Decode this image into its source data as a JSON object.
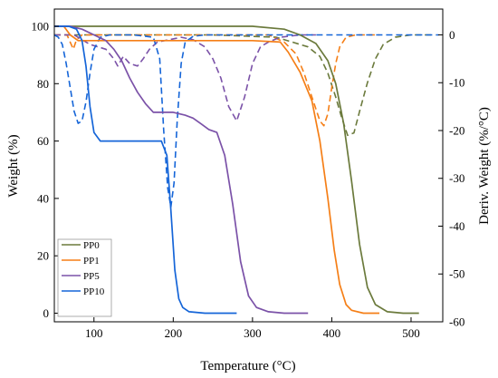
{
  "chart_data": {
    "type": "line",
    "title": "",
    "xlabel": "Temperature (°C)",
    "ylabel": "Weight (%)",
    "y2label": "Deriv. Weight (%/°C)",
    "xlim": [
      50,
      540
    ],
    "ylim": [
      -3,
      106
    ],
    "y2lim": [
      -60,
      5.4
    ],
    "xticks": [
      100,
      200,
      300,
      400,
      500
    ],
    "yticks": [
      0,
      20,
      40,
      60,
      80,
      100
    ],
    "y2ticks": [
      0,
      -10,
      -20,
      -30,
      -40,
      -50,
      -60
    ],
    "grid": false,
    "legend_position": "bottom-left",
    "legend": [
      {
        "name": "PP0",
        "color": "#6b7a3c"
      },
      {
        "name": "PP1",
        "color": "#f57f17"
      },
      {
        "name": "PP5",
        "color": "#7b52a8"
      },
      {
        "name": "PP10",
        "color": "#1565d8"
      }
    ],
    "series": [
      {
        "name": "PP0",
        "axis": "left",
        "style": "solid",
        "color": "#6b7a3c",
        "x": [
          50,
          100,
          200,
          300,
          340,
          360,
          380,
          395,
          405,
          415,
          425,
          435,
          445,
          455,
          470,
          490,
          510
        ],
        "y": [
          100,
          100,
          100,
          100,
          99,
          97,
          94,
          88,
          80,
          66,
          46,
          24,
          9,
          3,
          0.5,
          0,
          0
        ]
      },
      {
        "name": "PP1",
        "axis": "left",
        "style": "solid",
        "color": "#f57f17",
        "x": [
          50,
          62,
          70,
          80,
          100,
          200,
          300,
          335,
          345,
          360,
          375,
          385,
          395,
          403,
          410,
          418,
          425,
          440,
          460
        ],
        "y": [
          100,
          100,
          97,
          95,
          95,
          95,
          95,
          94.5,
          91,
          84,
          74,
          60,
          40,
          22,
          10,
          3,
          1,
          0,
          0
        ]
      },
      {
        "name": "PP5",
        "axis": "left",
        "style": "solid",
        "color": "#7b52a8",
        "x": [
          50,
          70,
          85,
          100,
          115,
          125,
          135,
          145,
          155,
          165,
          175,
          200,
          215,
          225,
          235,
          245,
          255,
          265,
          275,
          285,
          295,
          305,
          320,
          340,
          370
        ],
        "y": [
          100,
          100,
          99,
          97,
          95,
          92,
          88,
          82,
          77,
          73,
          70,
          70,
          69,
          68,
          66,
          64,
          63,
          55,
          38,
          18,
          6,
          2,
          0.5,
          0,
          0
        ]
      },
      {
        "name": "PP10",
        "axis": "left",
        "style": "solid",
        "color": "#1565d8",
        "x": [
          50,
          68,
          78,
          85,
          90,
          95,
          100,
          108,
          150,
          185,
          192,
          197,
          202,
          207,
          212,
          220,
          240,
          280
        ],
        "y": [
          100,
          100,
          99,
          95,
          86,
          72,
          63,
          60,
          60,
          60,
          55,
          36,
          15,
          5,
          2,
          0.5,
          0,
          0
        ]
      },
      {
        "name": "PP0 DTG",
        "axis": "right",
        "style": "dashed",
        "color": "#6b7a3c",
        "x": [
          50,
          250,
          330,
          350,
          370,
          385,
          395,
          405,
          412,
          420,
          428,
          435,
          445,
          455,
          465,
          480,
          500,
          530
        ],
        "y": [
          0,
          0,
          -0.5,
          -1.5,
          -2.5,
          -4.5,
          -8,
          -13,
          -17,
          -21,
          -20.5,
          -16,
          -10,
          -5,
          -2,
          -0.5,
          0,
          0
        ]
      },
      {
        "name": "PP1 DTG",
        "axis": "right",
        "style": "dashed",
        "color": "#f57f17",
        "x": [
          50,
          66,
          70,
          74,
          78,
          85,
          320,
          340,
          355,
          365,
          375,
          385,
          390,
          395,
          400,
          405,
          410,
          418,
          430,
          460
        ],
        "y": [
          0,
          0,
          -1.5,
          -3,
          -1,
          0,
          0,
          -1.5,
          -4,
          -8,
          -13,
          -18,
          -19,
          -16.5,
          -11,
          -6,
          -2.5,
          -0.5,
          0,
          0
        ]
      },
      {
        "name": "PP5 DTG",
        "axis": "right",
        "style": "dashed",
        "color": "#7b52a8",
        "x": [
          50,
          75,
          85,
          95,
          105,
          115,
          125,
          130,
          137,
          145,
          155,
          162,
          170,
          180,
          195,
          210,
          225,
          240,
          250,
          260,
          270,
          280,
          290,
          300,
          310,
          320,
          335,
          360,
          380
        ],
        "y": [
          0,
          0,
          -1,
          -2,
          -2.5,
          -3,
          -5,
          -6.5,
          -4.5,
          -6,
          -6.5,
          -5,
          -3,
          -1.5,
          -1,
          -0.5,
          -1,
          -2.5,
          -5,
          -9,
          -15,
          -18,
          -13,
          -6,
          -2.5,
          -1.5,
          -0.5,
          0,
          0
        ]
      },
      {
        "name": "PP10 DTG",
        "axis": "right",
        "style": "dashed",
        "color": "#1565d8",
        "x": [
          50,
          55,
          60,
          65,
          70,
          75,
          80,
          85,
          90,
          95,
          100,
          108,
          120,
          150,
          175,
          183,
          188,
          193,
          197,
          201,
          205,
          210,
          215,
          225,
          240,
          260,
          280
        ],
        "y": [
          0,
          -0.5,
          -2,
          -6,
          -11,
          -16,
          -18.5,
          -18,
          -14,
          -8,
          -3,
          -0.5,
          0,
          0,
          -0.5,
          -5,
          -20,
          -32,
          -36,
          -31,
          -18,
          -6,
          -1.5,
          -0.3,
          0,
          0,
          0
        ]
      },
      {
        "name": "Baseline",
        "axis": "right",
        "style": "dashed",
        "color": "#1565d8",
        "x": [
          280,
          535
        ],
        "y": [
          0,
          0
        ]
      }
    ]
  }
}
